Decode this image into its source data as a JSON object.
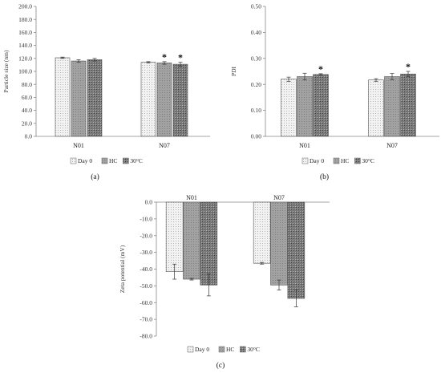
{
  "legend": [
    {
      "key": "day0",
      "label": "Day 0"
    },
    {
      "key": "hc",
      "label": "HC"
    },
    {
      "key": "c30",
      "label": "30°C"
    }
  ],
  "fills": {
    "day0": "#ececec",
    "hc": "#9a9a9a",
    "c30": "#6e6e6e"
  },
  "chart_data": [
    {
      "panel": "(a)",
      "type": "bar",
      "categories": [
        "N01",
        "N07"
      ],
      "ylabel": "Particle size (nm)",
      "ylim": [
        0,
        200
      ],
      "ticks": [
        "0.0",
        "20.0",
        "40.0",
        "60.0",
        "80.0",
        "100.0",
        "120.0",
        "140.0",
        "160.0",
        "180.0",
        "200.0"
      ],
      "series": [
        {
          "name": "Day 0",
          "values": [
            121,
            114
          ],
          "errors": [
            1,
            1
          ]
        },
        {
          "name": "HC",
          "values": [
            116,
            113
          ],
          "errors": [
            2,
            2
          ]
        },
        {
          "name": "30°C",
          "values": [
            118,
            111
          ],
          "errors": [
            2,
            3
          ]
        }
      ],
      "significance": [
        [
          false,
          false,
          false
        ],
        [
          false,
          true,
          true
        ]
      ]
    },
    {
      "panel": "(b)",
      "type": "bar",
      "categories": [
        "N01",
        "N07"
      ],
      "ylabel": "PDI",
      "ylim": [
        0,
        0.5
      ],
      "ticks": [
        "0.00",
        "0.10",
        "0.20",
        "0.30",
        "0.40",
        "0.50"
      ],
      "series": [
        {
          "name": "Day 0",
          "values": [
            0.22,
            0.217
          ],
          "errors": [
            0.008,
            0.005
          ]
        },
        {
          "name": "HC",
          "values": [
            0.23,
            0.23
          ],
          "errors": [
            0.013,
            0.012
          ]
        },
        {
          "name": "30°C",
          "values": [
            0.238,
            0.24
          ],
          "errors": [
            0.003,
            0.01
          ]
        }
      ],
      "significance": [
        [
          false,
          false,
          true
        ],
        [
          false,
          false,
          true
        ]
      ]
    },
    {
      "panel": "(c)",
      "type": "bar",
      "categories": [
        "N01",
        "N07"
      ],
      "ylabel": "Zeta potential (mV)",
      "ylim": [
        -80,
        0
      ],
      "ticks": [
        "0.0",
        "-10.0",
        "-20.0",
        "-30.0",
        "-40.0",
        "-50.0",
        "-60.0",
        "-70.0",
        "-80.0"
      ],
      "series": [
        {
          "name": "Day 0",
          "values": [
            -41.5,
            -36.5
          ],
          "errors": [
            4.5,
            0.5
          ]
        },
        {
          "name": "HC",
          "values": [
            -46,
            -49.5
          ],
          "errors": [
            0.5,
            3
          ]
        },
        {
          "name": "30°C",
          "values": [
            -49.5,
            -57.5
          ],
          "errors": [
            6.5,
            5
          ]
        }
      ],
      "significance": [
        [
          false,
          false,
          false
        ],
        [
          false,
          false,
          false
        ]
      ]
    }
  ]
}
